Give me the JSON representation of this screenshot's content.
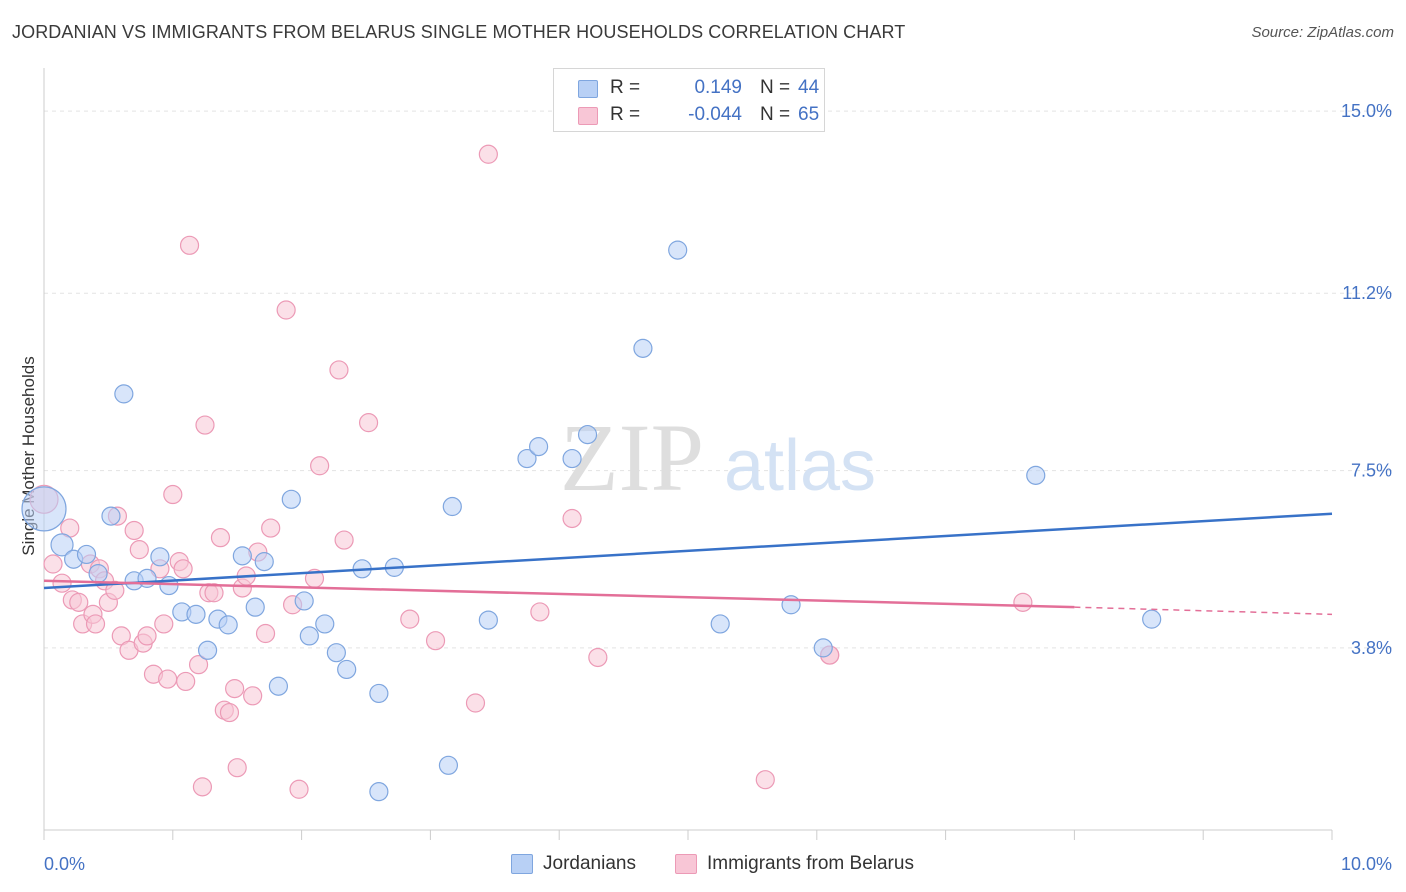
{
  "title": "JORDANIAN VS IMMIGRANTS FROM BELARUS SINGLE MOTHER HOUSEHOLDS CORRELATION CHART",
  "source": "Source: ZipAtlas.com",
  "watermark": {
    "zip": "ZIP",
    "atlas": "atlas"
  },
  "legend_top": {
    "rows": [
      {
        "r_label": "R =",
        "r_value": "0.149",
        "n_label": "N =",
        "n_value": "44"
      },
      {
        "r_label": "R =",
        "r_value": "-0.044",
        "n_label": "N =",
        "n_value": "65"
      }
    ]
  },
  "chart_data": {
    "type": "scatter",
    "title": "JORDANIAN VS IMMIGRANTS FROM BELARUS SINGLE MOTHER HOUSEHOLDS CORRELATION CHART",
    "xlabel": "",
    "ylabel": "Single Mother Households",
    "xlim": [
      0,
      10
    ],
    "ylim": [
      0,
      15.9
    ],
    "x_tick_labels": [
      "0.0%",
      "10.0%"
    ],
    "y_ticks": [
      3.8,
      7.5,
      11.2,
      15.0
    ],
    "y_tick_labels": [
      "3.8%",
      "7.5%",
      "11.2%",
      "15.0%"
    ],
    "grid": true,
    "colors": {
      "jordanians_fill": "#b8d0f5",
      "jordanians_stroke": "#7fa6df",
      "jordanians_line": "#3872c8",
      "belarus_fill": "#f8c6d6",
      "belarus_stroke": "#ec9ab6",
      "belarus_line": "#e36f98"
    },
    "series": [
      {
        "name": "Jordanians",
        "r": 0.149,
        "n": 44,
        "trend": {
          "x0": 0,
          "y0": 5.05,
          "x1": 10,
          "y1": 6.6
        },
        "points": [
          [
            0.0,
            6.7,
            22
          ],
          [
            0.14,
            5.95,
            11
          ],
          [
            0.23,
            5.65,
            9
          ],
          [
            0.33,
            5.75,
            9
          ],
          [
            0.42,
            5.35,
            9
          ],
          [
            0.52,
            6.55,
            9
          ],
          [
            0.62,
            9.1,
            9
          ],
          [
            0.7,
            5.2,
            9
          ],
          [
            0.8,
            5.25,
            9
          ],
          [
            0.9,
            5.7,
            9
          ],
          [
            0.97,
            5.1,
            9
          ],
          [
            1.07,
            4.55,
            9
          ],
          [
            1.18,
            4.5,
            9
          ],
          [
            1.27,
            3.75,
            9
          ],
          [
            1.35,
            4.4,
            9
          ],
          [
            1.43,
            4.28,
            9
          ],
          [
            1.54,
            5.72,
            9
          ],
          [
            1.64,
            4.65,
            9
          ],
          [
            1.71,
            5.6,
            9
          ],
          [
            1.82,
            3.0,
            9
          ],
          [
            1.92,
            6.9,
            9
          ],
          [
            2.02,
            4.78,
            9
          ],
          [
            2.06,
            4.05,
            9
          ],
          [
            2.18,
            4.3,
            9
          ],
          [
            2.27,
            3.7,
            9
          ],
          [
            2.35,
            3.35,
            9
          ],
          [
            2.47,
            5.45,
            9
          ],
          [
            2.6,
            2.85,
            9
          ],
          [
            2.72,
            5.48,
            9
          ],
          [
            2.6,
            0.8,
            9
          ],
          [
            3.14,
            1.35,
            9
          ],
          [
            3.17,
            6.75,
            9
          ],
          [
            3.45,
            4.38,
            9
          ],
          [
            3.75,
            7.75,
            9
          ],
          [
            3.84,
            8.0,
            9
          ],
          [
            4.1,
            7.75,
            9
          ],
          [
            4.22,
            8.25,
            9
          ],
          [
            4.65,
            10.05,
            9
          ],
          [
            4.92,
            12.1,
            9
          ],
          [
            5.25,
            4.3,
            9
          ],
          [
            5.8,
            4.7,
            9
          ],
          [
            6.05,
            3.8,
            9
          ],
          [
            7.7,
            7.4,
            9
          ],
          [
            8.6,
            4.4,
            9
          ]
        ]
      },
      {
        "name": "Immigrants from Belarus",
        "r": -0.044,
        "n": 65,
        "trend": {
          "x0": 0,
          "y0": 5.2,
          "x1": 8.0,
          "y1": 4.65,
          "dash_to_x": 10.0,
          "dash_to_y": 4.5
        },
        "points": [
          [
            0.0,
            6.9,
            14
          ],
          [
            0.07,
            5.55,
            9
          ],
          [
            0.14,
            5.15,
            9
          ],
          [
            0.2,
            6.3,
            9
          ],
          [
            0.22,
            4.8,
            9
          ],
          [
            0.27,
            4.75,
            9
          ],
          [
            0.3,
            4.3,
            9
          ],
          [
            0.36,
            5.55,
            9
          ],
          [
            0.38,
            4.5,
            9
          ],
          [
            0.4,
            4.3,
            9
          ],
          [
            0.43,
            5.45,
            9
          ],
          [
            0.47,
            5.2,
            9
          ],
          [
            0.5,
            4.75,
            9
          ],
          [
            0.55,
            5.0,
            9
          ],
          [
            0.57,
            6.55,
            9
          ],
          [
            0.6,
            4.05,
            9
          ],
          [
            0.66,
            3.75,
            9
          ],
          [
            0.7,
            6.25,
            9
          ],
          [
            0.74,
            5.85,
            9
          ],
          [
            0.77,
            3.9,
            9
          ],
          [
            0.8,
            4.05,
            9
          ],
          [
            0.85,
            3.25,
            9
          ],
          [
            0.9,
            5.45,
            9
          ],
          [
            0.93,
            4.3,
            9
          ],
          [
            0.96,
            3.15,
            9
          ],
          [
            1.0,
            7.0,
            9
          ],
          [
            1.05,
            5.6,
            9
          ],
          [
            1.08,
            5.45,
            9
          ],
          [
            1.1,
            3.1,
            9
          ],
          [
            1.13,
            12.2,
            9
          ],
          [
            1.2,
            3.45,
            9
          ],
          [
            1.23,
            0.9,
            9
          ],
          [
            1.25,
            8.45,
            9
          ],
          [
            1.28,
            4.95,
            9
          ],
          [
            1.32,
            4.95,
            9
          ],
          [
            1.37,
            6.1,
            9
          ],
          [
            1.4,
            2.5,
            9
          ],
          [
            1.44,
            2.45,
            9
          ],
          [
            1.48,
            2.95,
            9
          ],
          [
            1.5,
            1.3,
            9
          ],
          [
            1.54,
            5.05,
            9
          ],
          [
            1.57,
            5.3,
            9
          ],
          [
            1.62,
            2.8,
            9
          ],
          [
            1.66,
            5.8,
            9
          ],
          [
            1.72,
            4.1,
            9
          ],
          [
            1.76,
            6.3,
            9
          ],
          [
            1.88,
            10.85,
            9
          ],
          [
            1.93,
            4.7,
            9
          ],
          [
            1.98,
            0.85,
            9
          ],
          [
            2.1,
            5.25,
            9
          ],
          [
            2.14,
            7.6,
            9
          ],
          [
            2.29,
            9.6,
            9
          ],
          [
            2.33,
            6.05,
            9
          ],
          [
            2.52,
            8.5,
            9
          ],
          [
            2.84,
            4.4,
            9
          ],
          [
            3.04,
            3.95,
            9
          ],
          [
            3.35,
            2.65,
            9
          ],
          [
            3.45,
            14.1,
            9
          ],
          [
            3.85,
            4.55,
            9
          ],
          [
            4.1,
            6.5,
            9
          ],
          [
            4.3,
            3.6,
            9
          ],
          [
            5.6,
            1.05,
            9
          ],
          [
            6.1,
            3.65,
            9
          ],
          [
            7.6,
            4.75,
            9
          ],
          [
            6.1,
            3.65,
            9
          ]
        ]
      }
    ]
  }
}
